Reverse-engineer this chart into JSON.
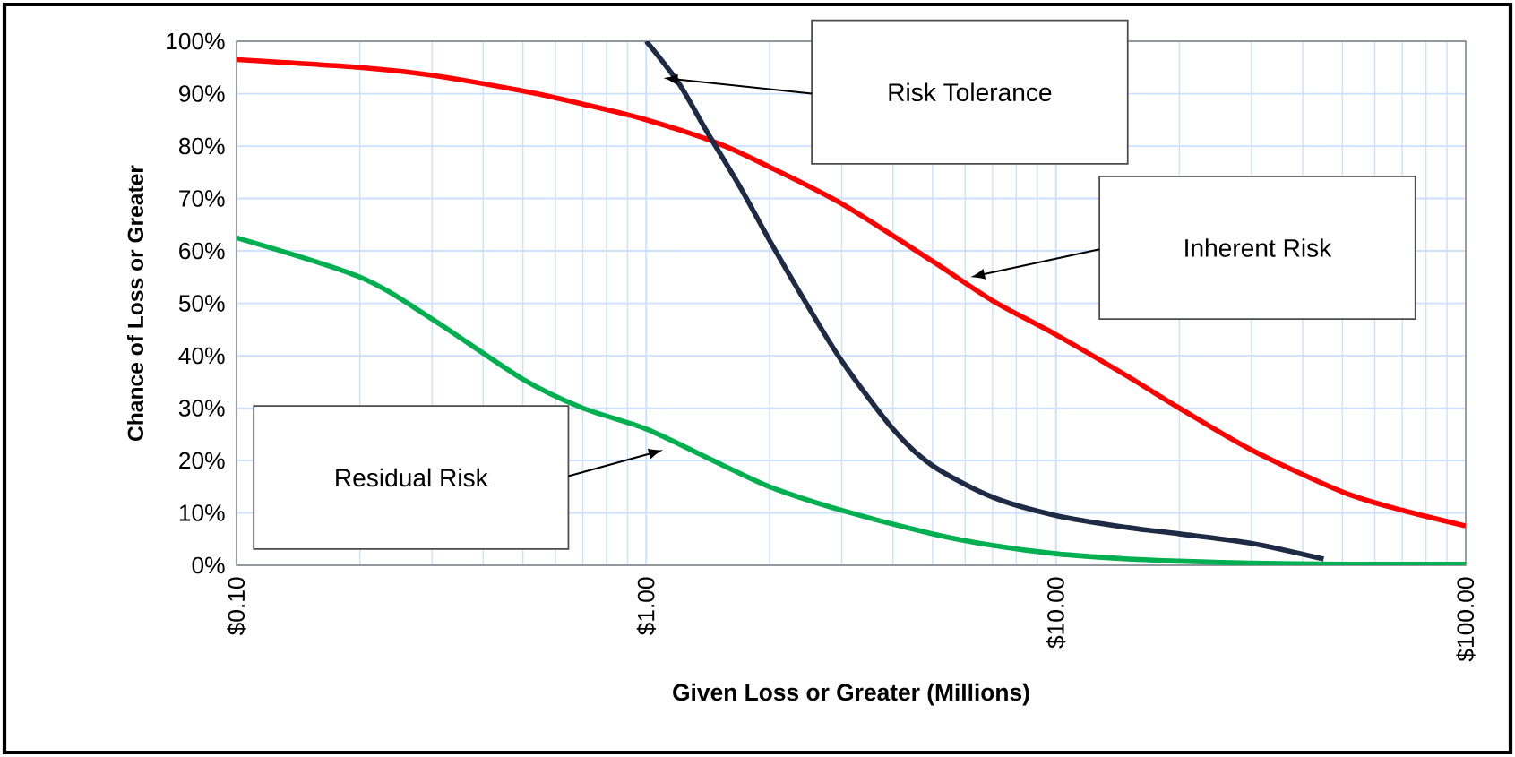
{
  "chart_data": {
    "type": "line",
    "xlabel": "Given Loss or Greater (Millions)",
    "ylabel": "Chance of Loss or Greater",
    "log": "x",
    "grid": true,
    "marker": "none",
    "line_style": "solid",
    "xlim": [
      0.1,
      100
    ],
    "xticks": [
      {
        "value": 0.1,
        "label": "$0.10"
      },
      {
        "value": 1,
        "label": "$1.00"
      },
      {
        "value": 10,
        "label": "$10.00"
      },
      {
        "value": 100,
        "label": "$100.00"
      }
    ],
    "ylim": [
      0,
      100
    ],
    "yticks": [
      {
        "value": 0,
        "label": "0%"
      },
      {
        "value": 10,
        "label": "10%"
      },
      {
        "value": 20,
        "label": "20%"
      },
      {
        "value": 30,
        "label": "30%"
      },
      {
        "value": 40,
        "label": "40%"
      },
      {
        "value": 50,
        "label": "50%"
      },
      {
        "value": 60,
        "label": "60%"
      },
      {
        "value": 70,
        "label": "70%"
      },
      {
        "value": 80,
        "label": "80%"
      },
      {
        "value": 90,
        "label": "90%"
      },
      {
        "value": 100,
        "label": "100%"
      }
    ],
    "series": [
      {
        "color": "#ff0000",
        "x": [
          0.1,
          0.2,
          0.3,
          0.5,
          0.7,
          1,
          1.5,
          2,
          3,
          5,
          7,
          10,
          15,
          20,
          30,
          50,
          70,
          100
        ],
        "values": [
          96.5,
          95,
          93.5,
          90.5,
          88,
          85,
          80.5,
          76,
          69,
          58,
          50.5,
          44,
          36,
          30,
          22,
          14,
          10.5,
          7.5
        ]
      },
      {
        "color": "#00b050",
        "x": [
          0.1,
          0.2,
          0.3,
          0.5,
          0.7,
          1,
          1.5,
          2,
          3,
          5,
          7,
          10,
          15,
          20,
          30,
          50,
          70,
          100
        ],
        "values": [
          62.5,
          55,
          47,
          35.5,
          30,
          26,
          19.5,
          15,
          10.5,
          6,
          3.8,
          2.2,
          1.2,
          0.8,
          0.4,
          0.2,
          0.2,
          0.2
        ]
      },
      {
        "color": "#1f2a44",
        "x": [
          1,
          1.2,
          1.4,
          1.7,
          2,
          2.5,
          3,
          4,
          5,
          7,
          10,
          15,
          20,
          30,
          45
        ],
        "values": [
          100,
          92,
          83,
          72,
          62,
          49,
          39,
          26,
          19,
          13,
          9.5,
          7.2,
          6,
          4.2,
          1.2
        ]
      }
    ],
    "annotations": [
      "Risk Tolerance",
      "Inherent Risk",
      "Residual Risk"
    ]
  }
}
